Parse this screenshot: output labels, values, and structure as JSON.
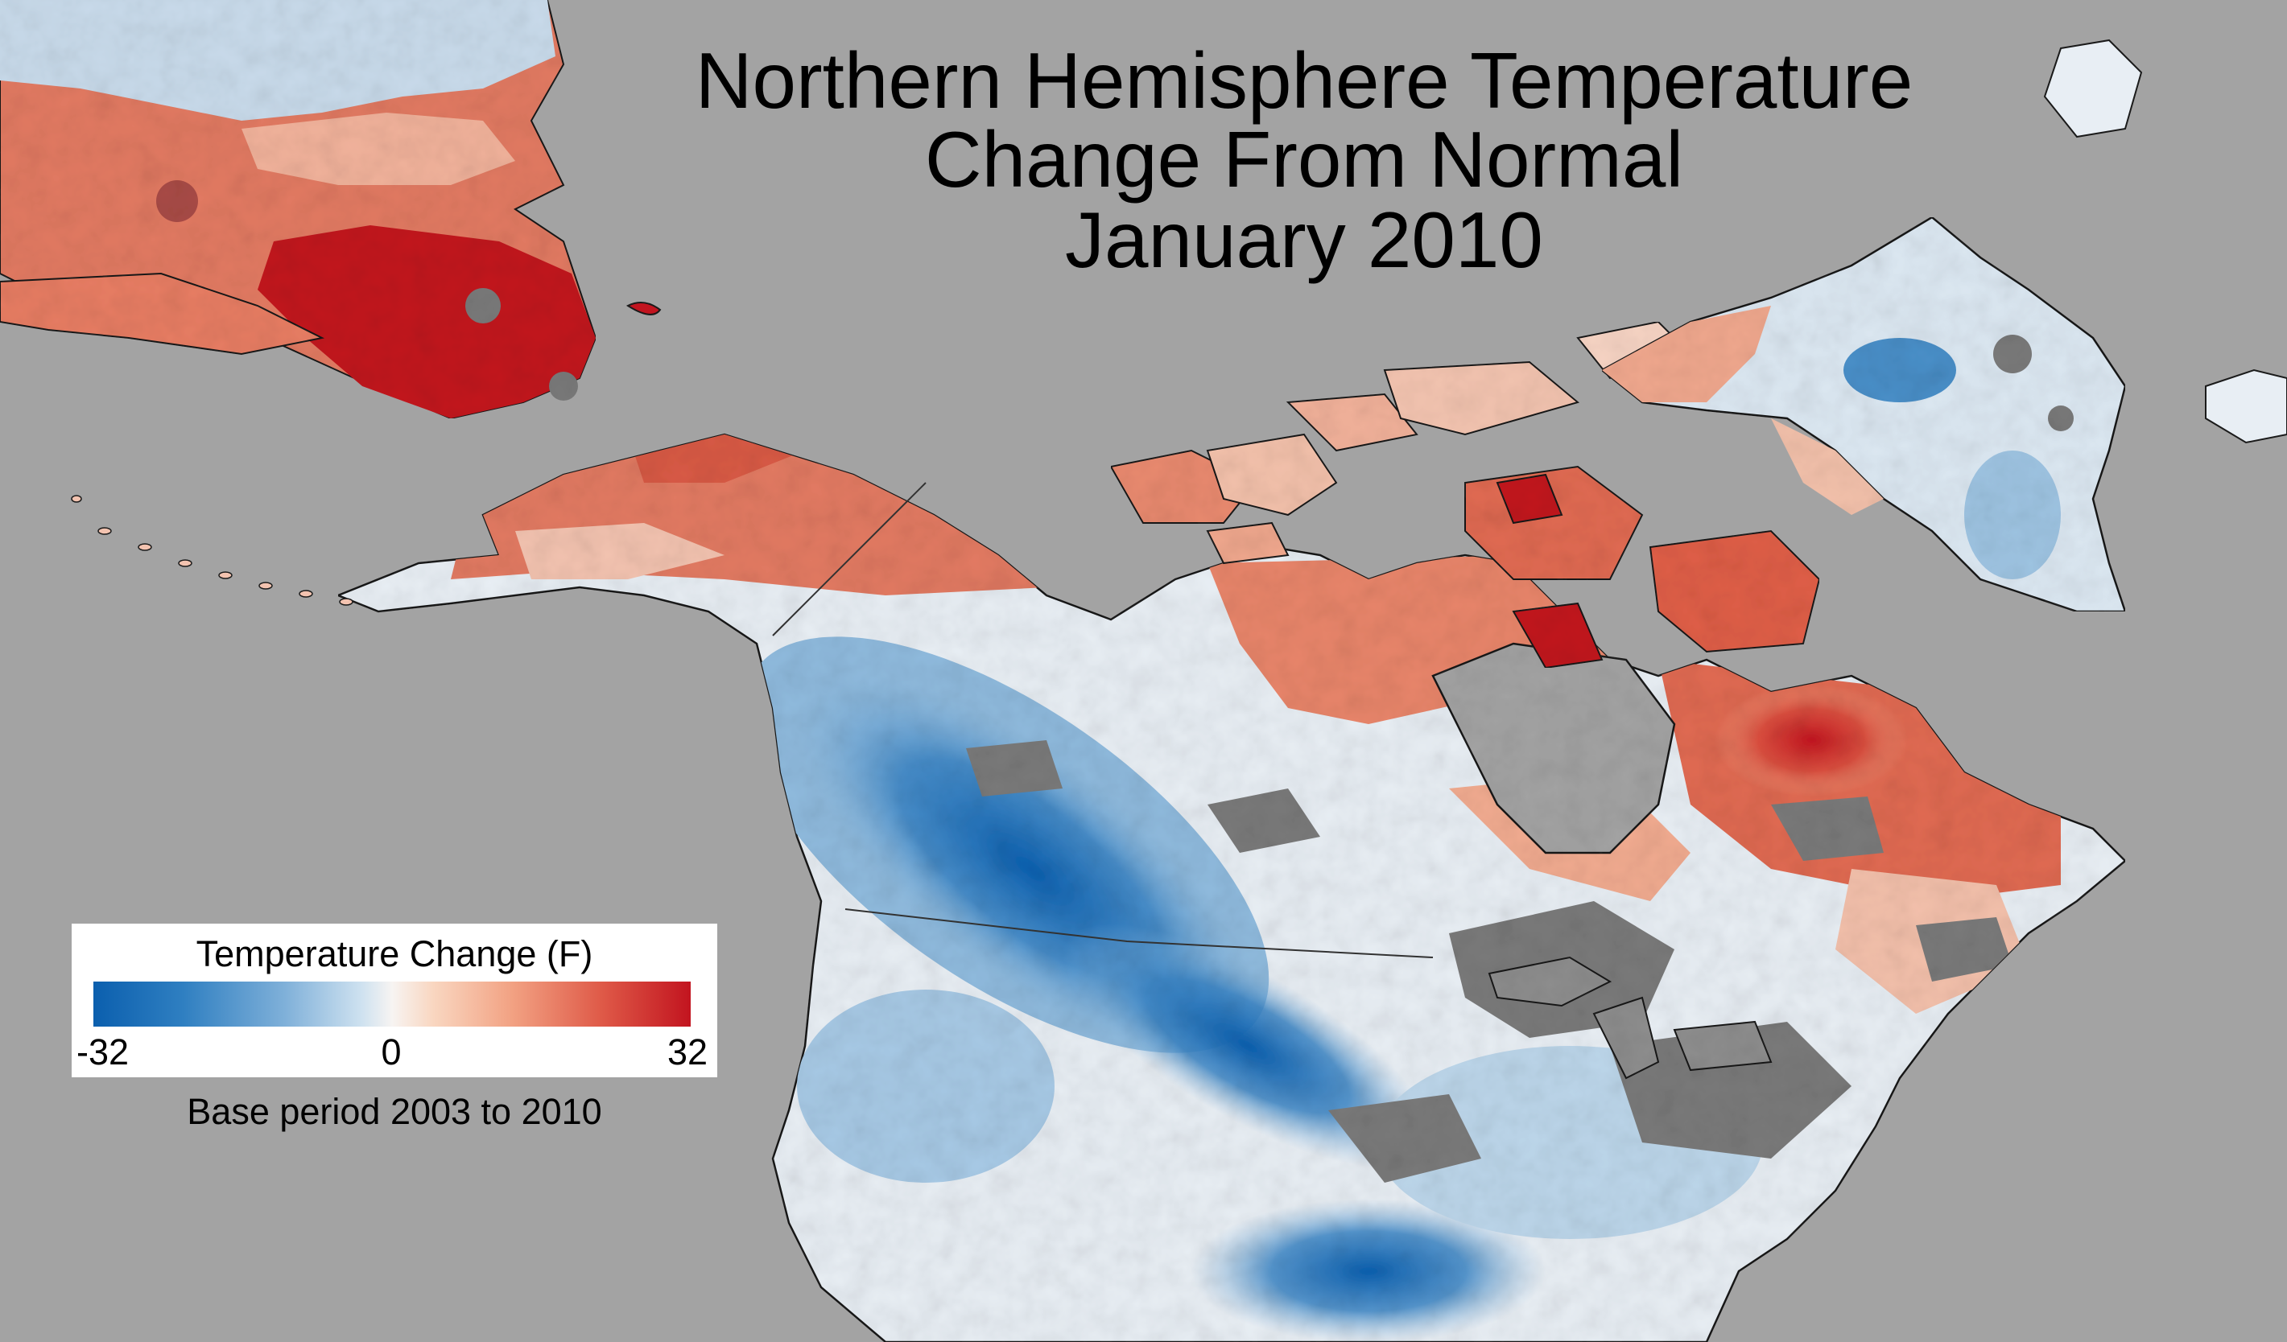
{
  "title": {
    "line1": "Northern Hemisphere Temperature",
    "line2": "Change From Normal",
    "line3": "January 2010"
  },
  "legend": {
    "title": "Temperature Change (F)",
    "min_label": "-32",
    "mid_label": "0",
    "max_label": "32",
    "base_period": "Base period 2003 to 2010"
  },
  "colors": {
    "ocean": "#a3a3a3",
    "no_data": "#7a7a7a",
    "cold_extreme": "#0b5fae",
    "neutral": "#f7f4f2",
    "warm_extreme": "#c2141f"
  }
}
